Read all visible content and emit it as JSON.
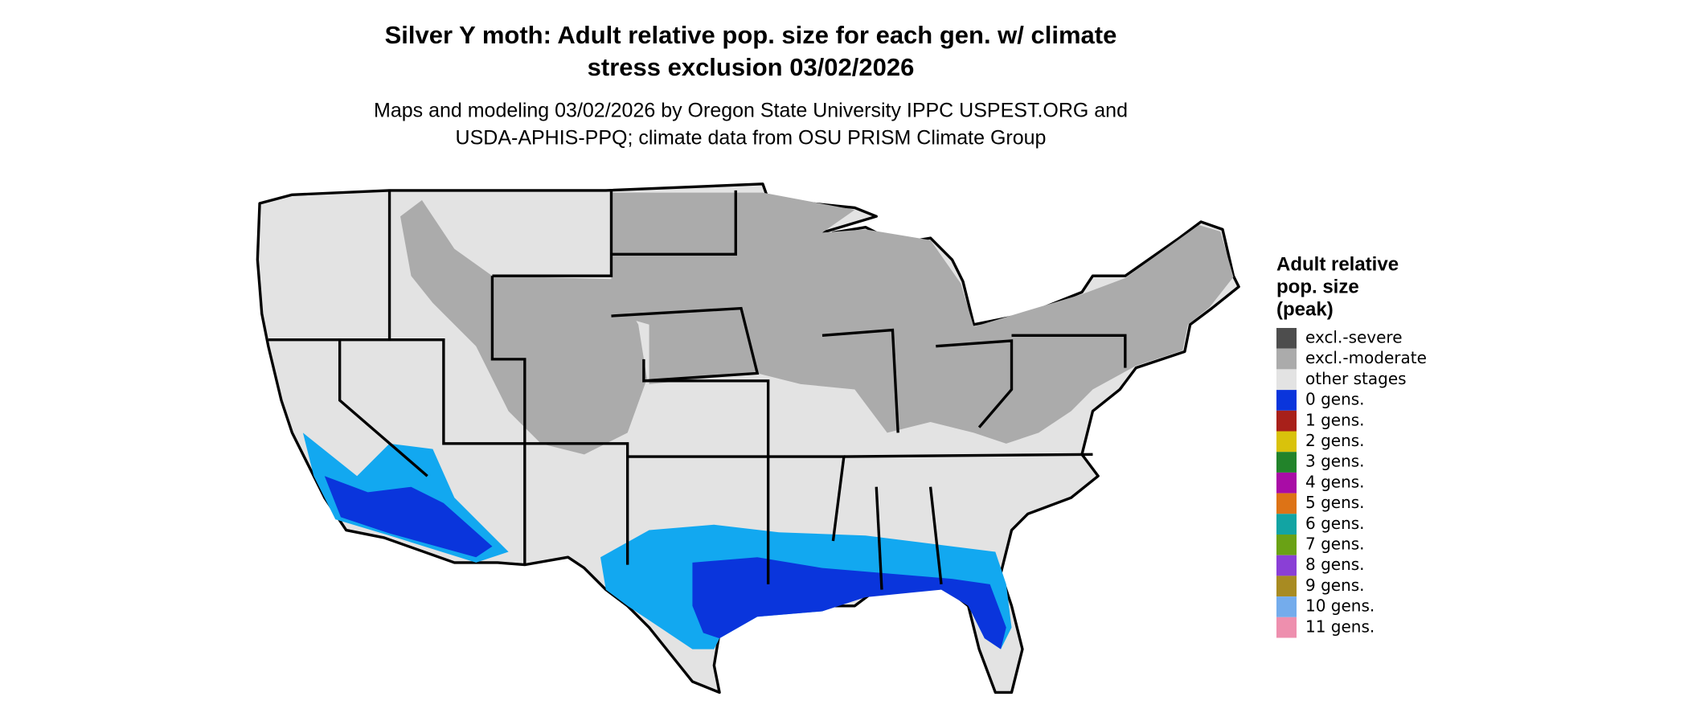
{
  "header": {
    "title_lines": [
      "Silver Y moth: Adult relative pop. size for each gen. w/ climate",
      "stress exclusion 03/02/2026"
    ],
    "subtitle_lines": [
      "Maps and modeling 03/02/2026 by Oregon State University IPPC USPEST.ORG and",
      "USDA-APHIS-PPQ; climate data from OSU PRISM Climate Group"
    ]
  },
  "legend": {
    "title_lines": [
      "Adult relative",
      "pop. size",
      "(peak)"
    ],
    "items": [
      {
        "label": "excl.-severe",
        "color": "#4d4d4d"
      },
      {
        "label": "excl.-moderate",
        "color": "#ababab"
      },
      {
        "label": "other stages",
        "color": "#e3e3e3"
      },
      {
        "label": "0 gens.",
        "color": "#0a35dc"
      },
      {
        "label": "1 gens.",
        "color": "#a8201a"
      },
      {
        "label": "2 gens.",
        "color": "#d9c20b"
      },
      {
        "label": "3 gens.",
        "color": "#22832a"
      },
      {
        "label": "4 gens.",
        "color": "#a90ca6"
      },
      {
        "label": "5 gens.",
        "color": "#dd7316"
      },
      {
        "label": "6 gens.",
        "color": "#12a4a3"
      },
      {
        "label": "7 gens.",
        "color": "#6aa215"
      },
      {
        "label": "8 gens.",
        "color": "#8a3fd6"
      },
      {
        "label": "9 gens.",
        "color": "#a88b22"
      },
      {
        "label": "10 gens.",
        "color": "#74acec"
      },
      {
        "label": "11 gens.",
        "color": "#ee8fae"
      }
    ]
  }
}
